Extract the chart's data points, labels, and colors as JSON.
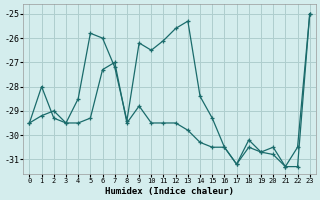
{
  "xlabel": "Humidex (Indice chaleur)",
  "background_color": "#d4eded",
  "grid_color": "#aecece",
  "line_color": "#1a6b6b",
  "xlim": [
    -0.5,
    23.5
  ],
  "ylim": [
    -31.6,
    -24.6
  ],
  "yticks": [
    -31,
    -30,
    -29,
    -28,
    -27,
    -26,
    -25
  ],
  "xticks": [
    0,
    1,
    2,
    3,
    4,
    5,
    6,
    7,
    8,
    9,
    10,
    11,
    12,
    13,
    14,
    15,
    16,
    17,
    18,
    19,
    20,
    21,
    22,
    23
  ],
  "line1_x": [
    0,
    1,
    2,
    3,
    4,
    5,
    6,
    7,
    8,
    9,
    10,
    11,
    12,
    13,
    14,
    15,
    16,
    17,
    18,
    19,
    20,
    21,
    22,
    23
  ],
  "line1_y": [
    -29.5,
    -28.0,
    -29.3,
    -29.5,
    -28.5,
    -25.8,
    -26.0,
    -27.2,
    -29.4,
    -26.2,
    -26.5,
    -26.1,
    -25.6,
    -25.3,
    -28.4,
    -29.3,
    -30.5,
    -31.2,
    -30.5,
    -30.7,
    -30.8,
    -31.3,
    -31.3,
    -25.0
  ],
  "line2_x": [
    0,
    1,
    2,
    3,
    4,
    5,
    6,
    7,
    8,
    9,
    10,
    11,
    12,
    13,
    14,
    15,
    16,
    17,
    18,
    19,
    20,
    21,
    22,
    23
  ],
  "line2_y": [
    -29.5,
    -29.2,
    -29.0,
    -29.5,
    -29.5,
    -29.3,
    -27.3,
    -27.0,
    -29.5,
    -28.8,
    -29.5,
    -29.5,
    -29.5,
    -29.8,
    -30.3,
    -30.5,
    -30.5,
    -31.2,
    -30.2,
    -30.7,
    -30.5,
    -31.3,
    -30.5,
    -25.0
  ]
}
